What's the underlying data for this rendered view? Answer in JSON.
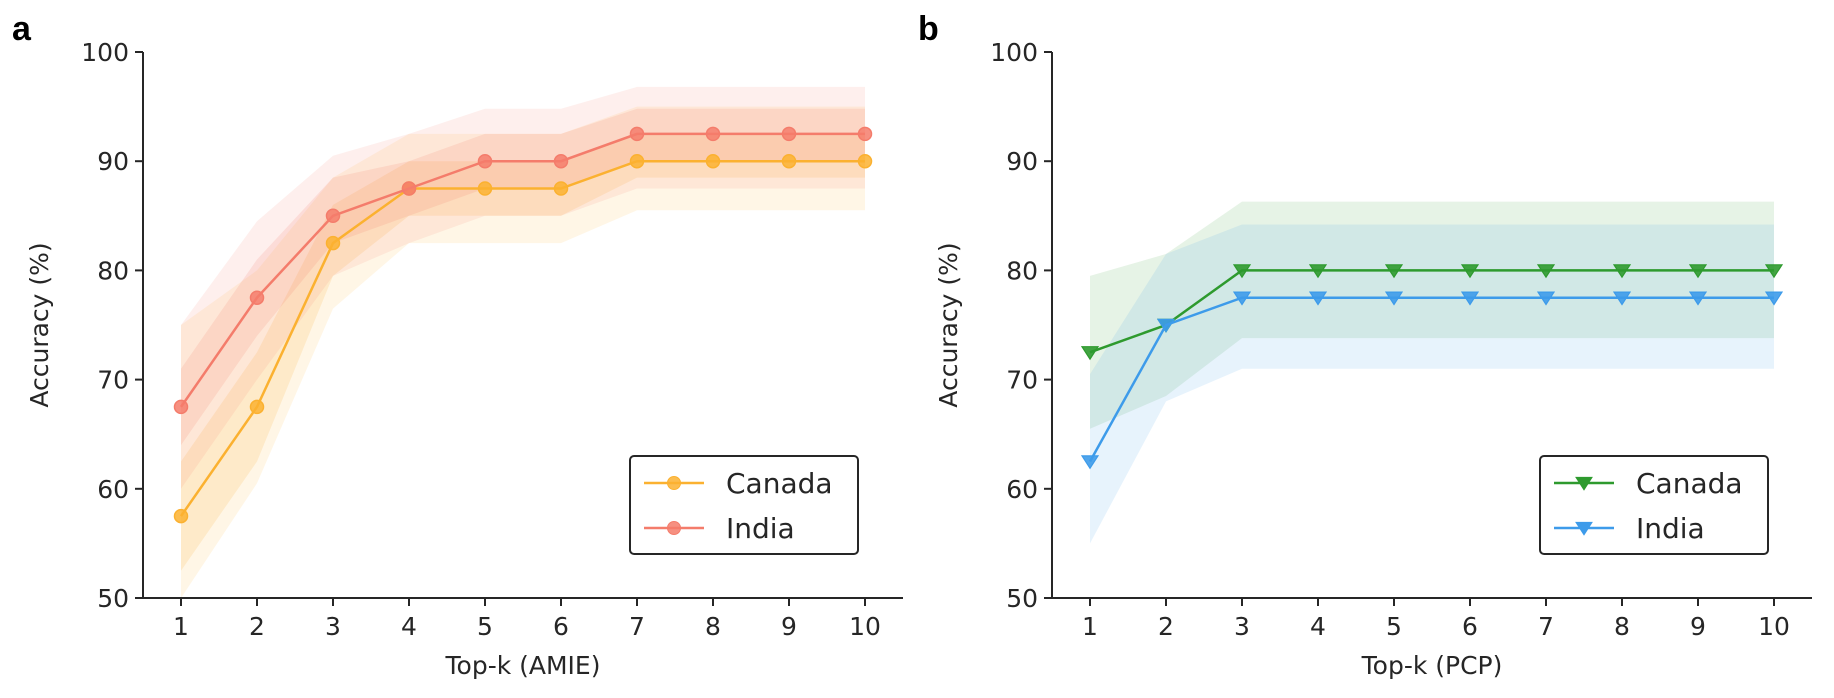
{
  "chart_data": [
    {
      "panel": "a",
      "type": "line",
      "marker": "circle",
      "xlabel": "Top-k (AMIE)",
      "ylabel": "Accuracy (%)",
      "x": [
        1,
        2,
        3,
        4,
        5,
        6,
        7,
        8,
        9,
        10
      ],
      "xlim": [
        0.5,
        10.5
      ],
      "ylim": [
        50,
        100
      ],
      "yticks": [
        50,
        60,
        70,
        80,
        90,
        100
      ],
      "legend_position": "lower-right",
      "grid": false,
      "series": [
        {
          "name": "Canada",
          "color": "#FBB130",
          "values": [
            57.5,
            67.5,
            82.5,
            87.5,
            87.5,
            87.5,
            90,
            90,
            90,
            90
          ],
          "band_outer": {
            "lower": [
              50,
              60.5,
              76.5,
              82.5,
              82.5,
              82.5,
              85.5,
              85.5,
              85.5,
              85.5
            ],
            "upper": [
              75,
              80,
              88.5,
              92.5,
              92.5,
              92.5,
              95,
              95,
              95,
              95
            ]
          },
          "band_inner": {
            "lower": [
              52.5,
              62.5,
              79.5,
              85,
              85,
              85,
              88.5,
              88.5,
              88.5,
              88.5
            ],
            "upper": [
              62.5,
              72.5,
              86,
              90,
              90,
              90,
              92.5,
              92.5,
              92.5,
              92.5
            ]
          }
        },
        {
          "name": "India",
          "color": "#F47C6B",
          "values": [
            67.5,
            77.5,
            85,
            87.5,
            90,
            90,
            92.5,
            92.5,
            92.5,
            92.5
          ],
          "band_outer": {
            "lower": [
              60,
              70,
              79.5,
              82.5,
              85,
              85,
              87.5,
              87.5,
              87.5,
              87.5
            ],
            "upper": [
              75,
              84.5,
              90.5,
              92.5,
              94.8,
              94.8,
              96.8,
              96.8,
              96.8,
              96.8
            ]
          },
          "band_inner": {
            "lower": [
              64,
              74,
              82.5,
              85,
              87.5,
              87.5,
              90,
              90,
              90,
              90
            ],
            "upper": [
              71,
              81,
              88.5,
              90,
              92.5,
              92.5,
              94.8,
              94.8,
              94.8,
              94.8
            ]
          }
        }
      ]
    },
    {
      "panel": "b",
      "type": "line",
      "marker": "triangle-down",
      "xlabel": "Top-k (PCP)",
      "ylabel": "Accuracy (%)",
      "x": [
        1,
        2,
        3,
        4,
        5,
        6,
        7,
        8,
        9,
        10
      ],
      "xlim": [
        0.5,
        10.5
      ],
      "ylim": [
        50,
        100
      ],
      "yticks": [
        50,
        60,
        70,
        80,
        90,
        100
      ],
      "legend_position": "lower-right",
      "grid": false,
      "series": [
        {
          "name": "Canada",
          "color": "#2E9A2E",
          "values": [
            72.5,
            75,
            80,
            80,
            80,
            80,
            80,
            80,
            80,
            80
          ],
          "band_outer": {
            "lower": [
              65.5,
              68.5,
              73.8,
              73.8,
              73.8,
              73.8,
              73.8,
              73.8,
              73.8,
              73.8
            ],
            "upper": [
              79.5,
              81.5,
              86.3,
              86.3,
              86.3,
              86.3,
              86.3,
              86.3,
              86.3,
              86.3
            ]
          }
        },
        {
          "name": "India",
          "color": "#3D9BEA",
          "values": [
            62.5,
            75,
            77.5,
            77.5,
            77.5,
            77.5,
            77.5,
            77.5,
            77.5,
            77.5
          ],
          "band_outer": {
            "lower": [
              55,
              68,
              71,
              71,
              71,
              71,
              71,
              71,
              71,
              71
            ],
            "upper": [
              70.5,
              81.5,
              84.2,
              84.2,
              84.2,
              84.2,
              84.2,
              84.2,
              84.2,
              84.2
            ]
          }
        }
      ]
    }
  ]
}
